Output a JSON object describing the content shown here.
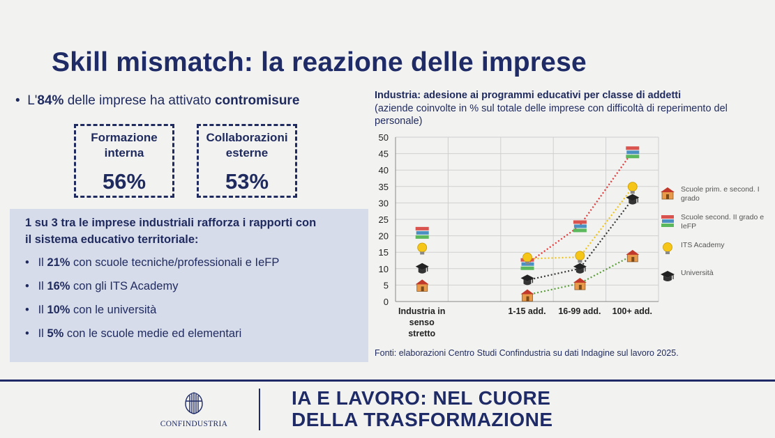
{
  "title": "Skill mismatch: la reazione delle imprese",
  "bullet": {
    "bullet_char": "•",
    "pre": "L'",
    "pct": "84%",
    "mid": " delle imprese ha attivato ",
    "bold": "contromisure"
  },
  "boxes": [
    {
      "label_line1": "Formazione",
      "label_line2": "interna",
      "value": "56%"
    },
    {
      "label_line1": "Collaborazioni",
      "label_line2": "esterne",
      "value": "53%"
    }
  ],
  "panel": {
    "heading": "1 su 3 tra le imprese industriali rafforza i rapporti con il sistema educativo territoriale:",
    "items": [
      {
        "pre": "Il ",
        "pct": "21%",
        "text": " con scuole tecniche/professionali e IeFP"
      },
      {
        "pre": "Il ",
        "pct": "16%",
        "text": " con gli ITS Academy"
      },
      {
        "pre": "Il ",
        "pct": "10%",
        "text": " con le università"
      },
      {
        "pre": "Il ",
        "pct": "5%",
        "text": " con le scuole medie ed elementari"
      }
    ]
  },
  "chart_data": {
    "type": "line",
    "title": "Industria: adesione ai programmi educativi per classe di addetti",
    "subtitle": "(aziende coinvolte in % sul totale delle imprese con difficoltà di reperimento del personale)",
    "categories": [
      "Industria in senso stretto",
      "",
      "1-15 add.",
      "16-99 add.",
      "100+ add."
    ],
    "ylim": [
      0,
      50
    ],
    "yticks": [
      0,
      5,
      10,
      15,
      20,
      25,
      30,
      35,
      40,
      45,
      50
    ],
    "grid": true,
    "legend_position": "right",
    "series": [
      {
        "name": "Scuole prim. e second. I grado",
        "icon": "school-icon",
        "color": "#5a9e3a",
        "values": [
          5,
          null,
          2,
          5.5,
          14
        ]
      },
      {
        "name": "Scuole second. II grado e IeFP",
        "icon": "books-icon",
        "color": "#e03a3a",
        "values": [
          21,
          null,
          11.5,
          23,
          45.5
        ]
      },
      {
        "name": "ITS Academy",
        "icon": "bulb-icon",
        "color": "#f0c419",
        "values": [
          16,
          null,
          13,
          13.5,
          34.5
        ]
      },
      {
        "name": "Università",
        "icon": "gradcap-icon",
        "color": "#333333",
        "values": [
          10,
          null,
          6.5,
          10,
          31
        ]
      }
    ],
    "source": "Fonti: elaborazioni Centro Studi Confindustria su dati Indagine sul lavoro 2025."
  },
  "footer": {
    "logo_name": "CONFINDUSTRIA",
    "tagline_line1": "IA E LAVORO: NEL CUORE",
    "tagline_line2": "DELLA TRASFORMAZIONE"
  },
  "colors": {
    "navy": "#1e2b66",
    "panel": "#d7dceb"
  }
}
